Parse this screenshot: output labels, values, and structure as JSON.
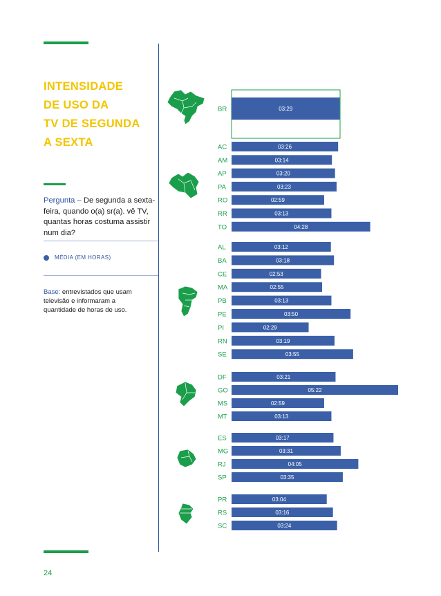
{
  "page": {
    "title": "INTENSIDADE\nDE USO DA\nTV DE SEGUNDA\nA SEXTA",
    "question_label": "Pergunta –",
    "question_text": " De segunda a sexta-feira, quando o(a) sr(a). vê TV, quantas horas costuma assistir num dia?",
    "legend_label": "MÉDIA (EM HORAS)",
    "base_label": "Base:",
    "base_text": " entrevistados que usam televisão e informaram a quantidade de horas de uso.",
    "page_number": "24"
  },
  "colors": {
    "bar": "#3b60a8",
    "label": "#1b9e4b",
    "title": "#f2c500",
    "accent": "#2e55a0"
  },
  "regions": [
    {
      "name": "Brasil",
      "icon": "brazil-map-icon"
    },
    {
      "name": "Norte",
      "icon": "north-region-map-icon"
    },
    {
      "name": "Nordeste",
      "icon": "northeast-region-map-icon"
    },
    {
      "name": "Centro-Oeste",
      "icon": "center-west-region-map-icon"
    },
    {
      "name": "Sudeste",
      "icon": "southeast-region-map-icon"
    },
    {
      "name": "Sul",
      "icon": "south-region-map-icon"
    }
  ],
  "chart_data": {
    "type": "bar",
    "orientation": "horizontal",
    "unit": "hours (hh:mm)",
    "legend": [
      "MÉDIA (EM HORAS)"
    ],
    "groups": [
      {
        "region": "Brasil",
        "items": [
          {
            "label": "BR",
            "value": "03:29",
            "minutes": 209
          }
        ]
      },
      {
        "region": "Norte",
        "items": [
          {
            "label": "AC",
            "value": "03:26",
            "minutes": 206
          },
          {
            "label": "AM",
            "value": "03:14",
            "minutes": 194
          },
          {
            "label": "AP",
            "value": "03:20",
            "minutes": 200
          },
          {
            "label": "PA",
            "value": "03:23",
            "minutes": 203
          },
          {
            "label": "RO",
            "value": "02:59",
            "minutes": 179
          },
          {
            "label": "RR",
            "value": "03:13",
            "minutes": 193
          },
          {
            "label": "TO",
            "value": "04:28",
            "minutes": 268
          }
        ]
      },
      {
        "region": "Nordeste",
        "items": [
          {
            "label": "AL",
            "value": "03:12",
            "minutes": 192
          },
          {
            "label": "BA",
            "value": "03:18",
            "minutes": 198
          },
          {
            "label": "CE",
            "value": "02:53",
            "minutes": 173
          },
          {
            "label": "MA",
            "value": "02:55",
            "minutes": 175
          },
          {
            "label": "PB",
            "value": "03:13",
            "minutes": 193
          },
          {
            "label": "PE",
            "value": "03:50",
            "minutes": 230
          },
          {
            "label": "PI",
            "value": "02:29",
            "minutes": 149
          },
          {
            "label": "RN",
            "value": "03:19",
            "minutes": 199
          },
          {
            "label": "SE",
            "value": "03:55",
            "minutes": 235
          }
        ]
      },
      {
        "region": "Centro-Oeste",
        "items": [
          {
            "label": "DF",
            "value": "03:21",
            "minutes": 201
          },
          {
            "label": "GO",
            "value": "05:22",
            "minutes": 322
          },
          {
            "label": "MS",
            "value": "02:59",
            "minutes": 179
          },
          {
            "label": "MT",
            "value": "03:13",
            "minutes": 193
          }
        ]
      },
      {
        "region": "Sudeste",
        "items": [
          {
            "label": "ES",
            "value": "03:17",
            "minutes": 197
          },
          {
            "label": "MG",
            "value": "03:31",
            "minutes": 211
          },
          {
            "label": "RJ",
            "value": "04:05",
            "minutes": 245
          },
          {
            "label": "SP",
            "value": "03:35",
            "minutes": 215
          }
        ]
      },
      {
        "region": "Sul",
        "items": [
          {
            "label": "PR",
            "value": "03:04",
            "minutes": 184
          },
          {
            "label": "RS",
            "value": "03:16",
            "minutes": 196
          },
          {
            "label": "SC",
            "value": "03:24",
            "minutes": 204
          }
        ]
      }
    ]
  }
}
